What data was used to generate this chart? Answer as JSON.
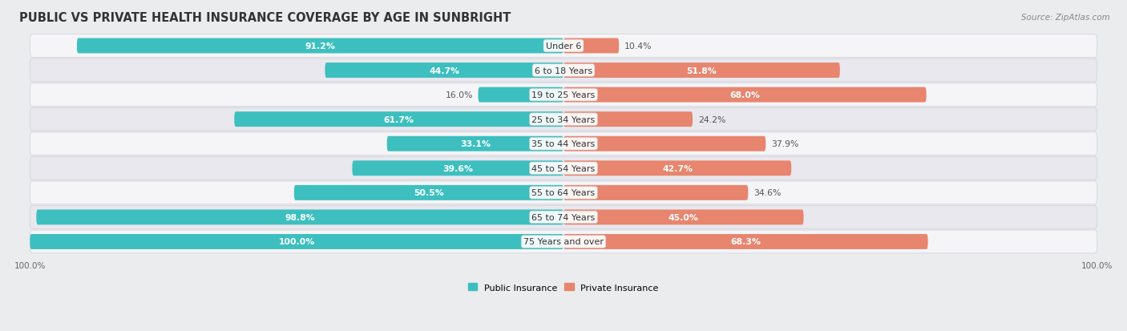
{
  "title": "PUBLIC VS PRIVATE HEALTH INSURANCE COVERAGE BY AGE IN SUNBRIGHT",
  "source": "Source: ZipAtlas.com",
  "categories": [
    "Under 6",
    "6 to 18 Years",
    "19 to 25 Years",
    "25 to 34 Years",
    "35 to 44 Years",
    "45 to 54 Years",
    "55 to 64 Years",
    "65 to 74 Years",
    "75 Years and over"
  ],
  "public": [
    91.2,
    44.7,
    16.0,
    61.7,
    33.1,
    39.6,
    50.5,
    98.8,
    100.0
  ],
  "private": [
    10.4,
    51.8,
    68.0,
    24.2,
    37.9,
    42.7,
    34.6,
    45.0,
    68.3
  ],
  "public_color": "#3dbfbf",
  "private_color": "#e8856e",
  "public_label": "Public Insurance",
  "private_label": "Private Insurance",
  "bg_color": "#eaecee",
  "row_bg_color": "#f5f5f8",
  "row_bg_alt_color": "#e8e8ee",
  "max_val": 100.0,
  "title_fontsize": 10.5,
  "source_fontsize": 7.5,
  "label_fontsize": 8.0,
  "bar_value_fontsize": 7.8,
  "category_fontsize": 8.0,
  "axis_label_fontsize": 7.5,
  "white_text_threshold_pub": 30,
  "white_text_threshold_priv": 40
}
